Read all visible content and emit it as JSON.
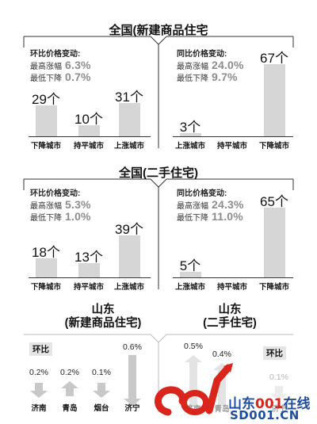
{
  "sections": {
    "new_title": "全国(新建商品住宅",
    "second_title": "全国(二手住宅)"
  },
  "panels": {
    "new_mom": {
      "heading": "环比价格变动:",
      "max_label": "最高涨幅",
      "max_value": "6.3%",
      "min_label": "最低下降",
      "min_value": "0.7%"
    },
    "new_yoy": {
      "heading": "同比价格变动:",
      "max_label": "最高涨幅",
      "max_value": "24.0%",
      "min_label": "最低下降",
      "min_value": "9.7%"
    },
    "second_mom": {
      "heading": "环比价格变动:",
      "max_label": "最高涨幅",
      "max_value": "5.3%",
      "min_label": "最低下降",
      "min_value": "1.0%"
    },
    "second_yoy": {
      "heading": "同比价格变动:",
      "max_label": "最高涨幅",
      "max_value": "24.3%",
      "min_label": "最低下降",
      "min_value": "11.0%"
    }
  },
  "shandong": {
    "new_title_line1": "山东",
    "new_title_line2": "(新建商品住宅)",
    "second_title_line1": "山东",
    "second_title_line2": "(二手住宅)",
    "huanbi_label": "环比"
  },
  "watermark": {
    "text1": "山东",
    "text2": "001",
    "text3": "在线",
    "text4": "SD001.CN"
  },
  "chart_data": [
    {
      "type": "bar",
      "title": "全国(新建商品住宅",
      "panel": "环比价格变动",
      "categories": [
        "下降城市",
        "持平城市",
        "上涨城市"
      ],
      "values": [
        29,
        10,
        31
      ],
      "value_labels": [
        "29个",
        "10个",
        "31个"
      ],
      "ylim": [
        0,
        70
      ]
    },
    {
      "type": "bar",
      "title": "全国(新建商品住宅",
      "panel": "同比价格变动",
      "categories": [
        "上涨城市",
        "持平城市",
        "下降城市"
      ],
      "values": [
        3,
        0,
        67
      ],
      "value_labels": [
        "3个",
        "",
        "67个"
      ],
      "ylim": [
        0,
        70
      ]
    },
    {
      "type": "bar",
      "title": "全国(二手住宅)",
      "panel": "环比价格变动",
      "categories": [
        "下降城市",
        "持平城市",
        "上涨城市"
      ],
      "values": [
        18,
        13,
        39
      ],
      "value_labels": [
        "18个",
        "13个",
        "39个"
      ],
      "ylim": [
        0,
        70
      ]
    },
    {
      "type": "bar",
      "title": "全国(二手住宅)",
      "panel": "同比价格变动",
      "categories": [
        "上涨城市",
        "持平城市",
        "下降城市"
      ],
      "values": [
        5,
        0,
        65
      ],
      "value_labels": [
        "5个",
        "",
        "65个"
      ],
      "ylim": [
        0,
        70
      ]
    },
    {
      "type": "bar",
      "title": "山东 (新建商品住宅)",
      "panel": "环比",
      "categories": [
        "济南",
        "青岛",
        "烟台",
        "济宁"
      ],
      "values": [
        -0.2,
        0.2,
        -0.1,
        -0.6
      ],
      "value_labels": [
        "0.2%",
        "0.2%",
        "0.1%",
        "0.6%"
      ]
    },
    {
      "type": "bar",
      "title": "山东 (二手住宅)",
      "panel": "环比",
      "categories": [
        "济南",
        "青岛",
        "烟台",
        "济宁"
      ],
      "values": [
        0.5,
        0.4,
        0,
        -0.1
      ],
      "value_labels": [
        "0.5%",
        "0.4%",
        "",
        "0.1%"
      ],
      "visible_category_labels": [
        "济南",
        "青岛",
        "",
        "济宁"
      ]
    }
  ]
}
